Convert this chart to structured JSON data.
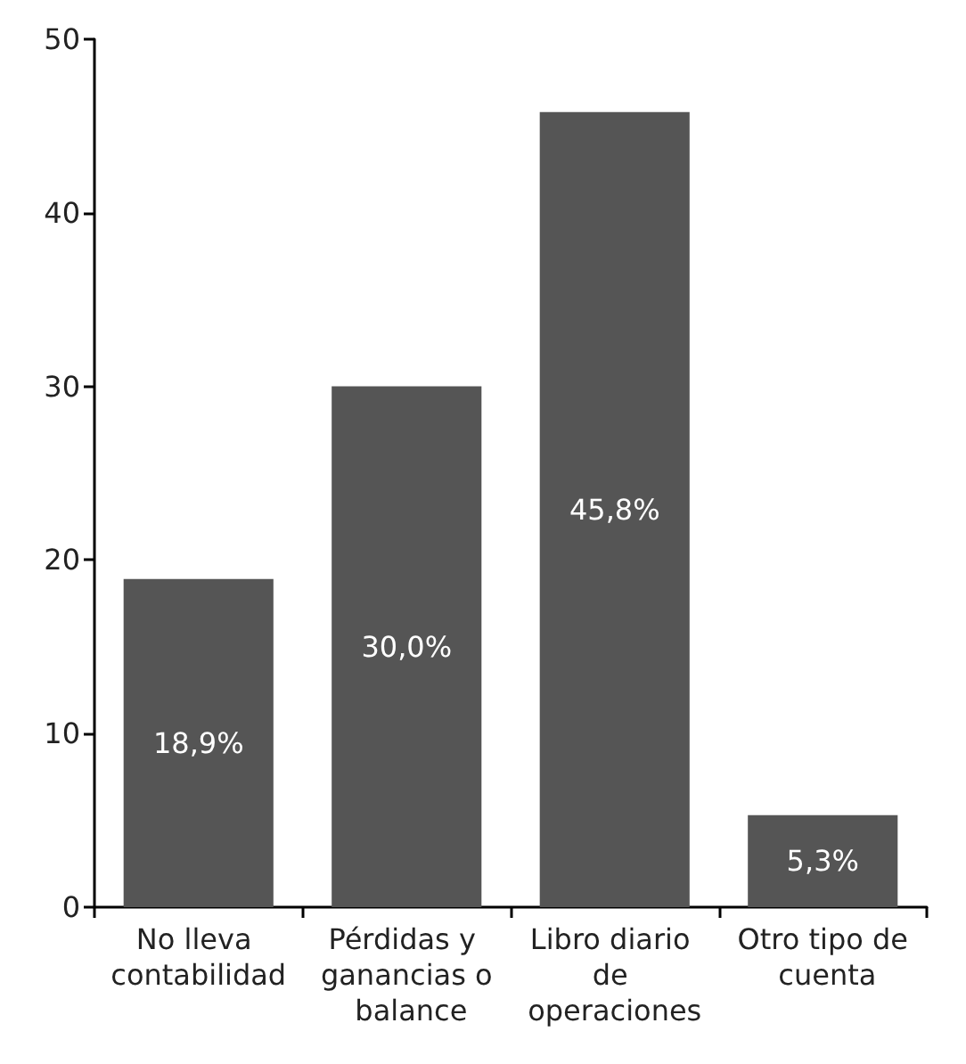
{
  "chart_data": {
    "type": "bar",
    "categories": [
      "No lleva contabilidad",
      "Pérdidas y ganancias o balance",
      "Libro diario de operaciones",
      "Otro tipo de cuenta"
    ],
    "values": [
      18.9,
      30.0,
      45.8,
      5.3
    ],
    "value_labels": [
      "18,9%",
      "30,0%",
      "45,8%",
      "5,3%"
    ],
    "color": "#555555",
    "ylim": [
      0,
      50
    ],
    "yticks": [
      0,
      10,
      20,
      30,
      40,
      50
    ],
    "grid": false
  }
}
